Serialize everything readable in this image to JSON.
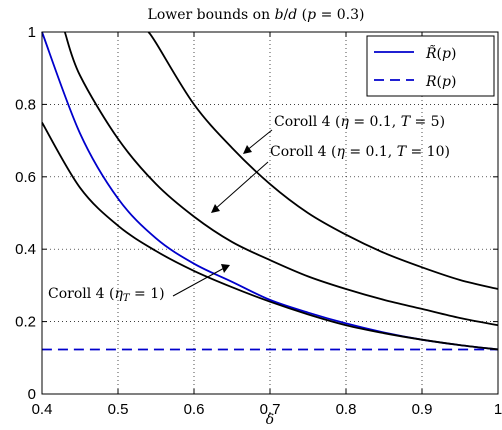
{
  "chart_data": {
    "type": "line",
    "title": "Lower bounds on b/d (p = 0.3)",
    "xlabel": "δ",
    "ylabel": "",
    "xlim": [
      0.4,
      1.0
    ],
    "ylim": [
      0,
      1.0
    ],
    "xticks": [
      "0.4",
      "0.5",
      "0.6",
      "0.7",
      "0.8",
      "0.9",
      "1"
    ],
    "yticks": [
      "0",
      "0.2",
      "0.4",
      "0.6",
      "0.8",
      "1"
    ],
    "grid": true,
    "legend_position": "top-right",
    "legend": [
      {
        "label": "R̃(p)",
        "style": "solid",
        "color": "#0000cc"
      },
      {
        "label": "R(p)",
        "style": "dashed",
        "color": "#0000cc"
      }
    ],
    "series": [
      {
        "name": "R̃(p)",
        "color": "#0000cc",
        "dash": "",
        "x": [
          0.4,
          0.45,
          0.5,
          0.55,
          0.6,
          0.65,
          0.7,
          0.75,
          0.8,
          0.85,
          0.9,
          0.95,
          1.0
        ],
        "y": [
          1.0,
          0.72,
          0.54,
          0.43,
          0.36,
          0.31,
          0.26,
          0.225,
          0.195,
          0.17,
          0.15,
          0.135,
          0.123
        ]
      },
      {
        "name": "R(p)",
        "color": "#0000cc",
        "dash": "10,6",
        "x": [
          0.4,
          1.0
        ],
        "y": [
          0.123,
          0.123
        ]
      },
      {
        "name": "Coroll 4 (η_T = 1)",
        "color": "#000000",
        "dash": "",
        "x": [
          0.4,
          0.45,
          0.5,
          0.55,
          0.6,
          0.65,
          0.7,
          0.75,
          0.8,
          0.85,
          0.9,
          0.95,
          1.0
        ],
        "y": [
          0.75,
          0.57,
          0.465,
          0.395,
          0.34,
          0.295,
          0.255,
          0.22,
          0.19,
          0.168,
          0.15,
          0.135,
          0.123
        ]
      },
      {
        "name": "Coroll 4 (η = 0.1, T = 10)",
        "color": "#000000",
        "dash": "",
        "x": [
          0.43,
          0.45,
          0.5,
          0.55,
          0.6,
          0.65,
          0.7,
          0.75,
          0.8,
          0.85,
          0.9,
          0.95,
          1.0
        ],
        "y": [
          1.0,
          0.88,
          0.705,
          0.58,
          0.49,
          0.42,
          0.37,
          0.325,
          0.29,
          0.26,
          0.235,
          0.21,
          0.19
        ]
      },
      {
        "name": "Coroll 4 (η = 0.1, T = 5)",
        "color": "#000000",
        "dash": "",
        "x": [
          0.54,
          0.55,
          0.6,
          0.65,
          0.7,
          0.75,
          0.8,
          0.85,
          0.9,
          0.95,
          1.0
        ],
        "y": [
          1.0,
          0.97,
          0.8,
          0.68,
          0.58,
          0.5,
          0.44,
          0.39,
          0.35,
          0.315,
          0.29
        ]
      }
    ],
    "annotations": [
      {
        "text": "Coroll 4 (η = 0.1, T = 5)",
        "target_x": 0.662,
        "target_y": 0.635
      },
      {
        "text": "Coroll 4 (η = 0.1, T = 10)",
        "target_x": 0.627,
        "target_y": 0.435
      },
      {
        "text": "Coroll 4 (η_T = 1)",
        "target_x": 0.646,
        "target_y": 0.31
      }
    ]
  }
}
